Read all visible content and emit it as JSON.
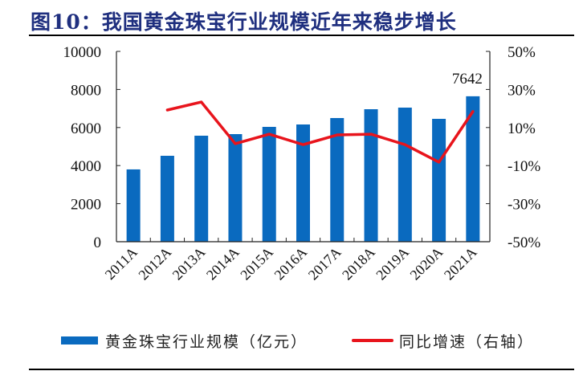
{
  "title": "图10：我国黄金珠宝行业规模近年来稳步增长",
  "colors": {
    "bar": "#0a6abf",
    "line": "#e8141c",
    "title": "#1f2f7f"
  },
  "legend": {
    "bar_label": "黄金珠宝行业规模（亿元）",
    "line_label": "同比增速（右轴）"
  },
  "chart_data": {
    "type": "bar+line",
    "title": "我国黄金珠宝行业规模近年来稳步增长",
    "categories": [
      "2011A",
      "2012A",
      "2013A",
      "2014A",
      "2015A",
      "2016A",
      "2017A",
      "2018A",
      "2019A",
      "2020A",
      "2021A"
    ],
    "series": [
      {
        "name": "黄金珠宝行业规模（亿元）",
        "type": "bar",
        "axis": "left",
        "values": [
          3800,
          4515,
          5570,
          5654,
          6034,
          6160,
          6498,
          6962,
          7046,
          6456,
          7642
        ]
      },
      {
        "name": "同比增速（右轴）",
        "type": "line",
        "axis": "right",
        "values": [
          null,
          19.2,
          23.4,
          1.5,
          6.5,
          1.0,
          6.1,
          6.5,
          1.0,
          -8.2,
          18.4
        ]
      }
    ],
    "annotations": [
      {
        "category": "2021A",
        "text": "7642"
      }
    ],
    "left_axis": {
      "ylim": [
        0,
        10000
      ],
      "ticks": [
        "10000",
        "8000",
        "6000",
        "4000",
        "2000",
        "0"
      ]
    },
    "right_axis": {
      "ylim": [
        -50,
        50
      ],
      "ticks": [
        "50%",
        "30%",
        "10%",
        "-10%",
        "-30%",
        "-50%"
      ]
    },
    "xlabel": "",
    "ylabel": "",
    "grid": false,
    "legend_position": "bottom"
  }
}
